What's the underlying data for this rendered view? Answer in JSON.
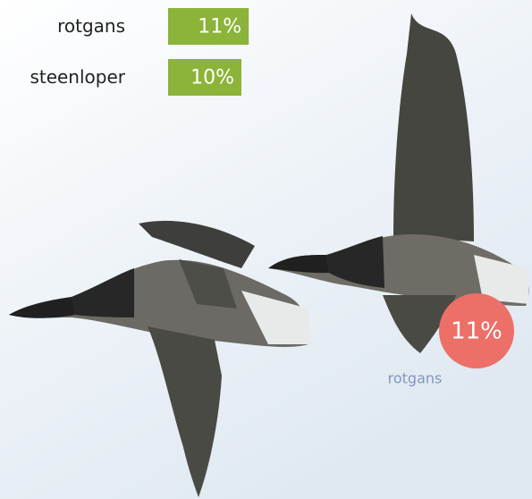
{
  "chart_data": {
    "type": "bar",
    "categories": [
      "rotgans",
      "steenloper"
    ],
    "values": [
      11,
      10
    ],
    "value_labels": [
      "11%",
      "10%"
    ],
    "color": "#8cb33a",
    "highlight_color": "#ec7068"
  }
}
